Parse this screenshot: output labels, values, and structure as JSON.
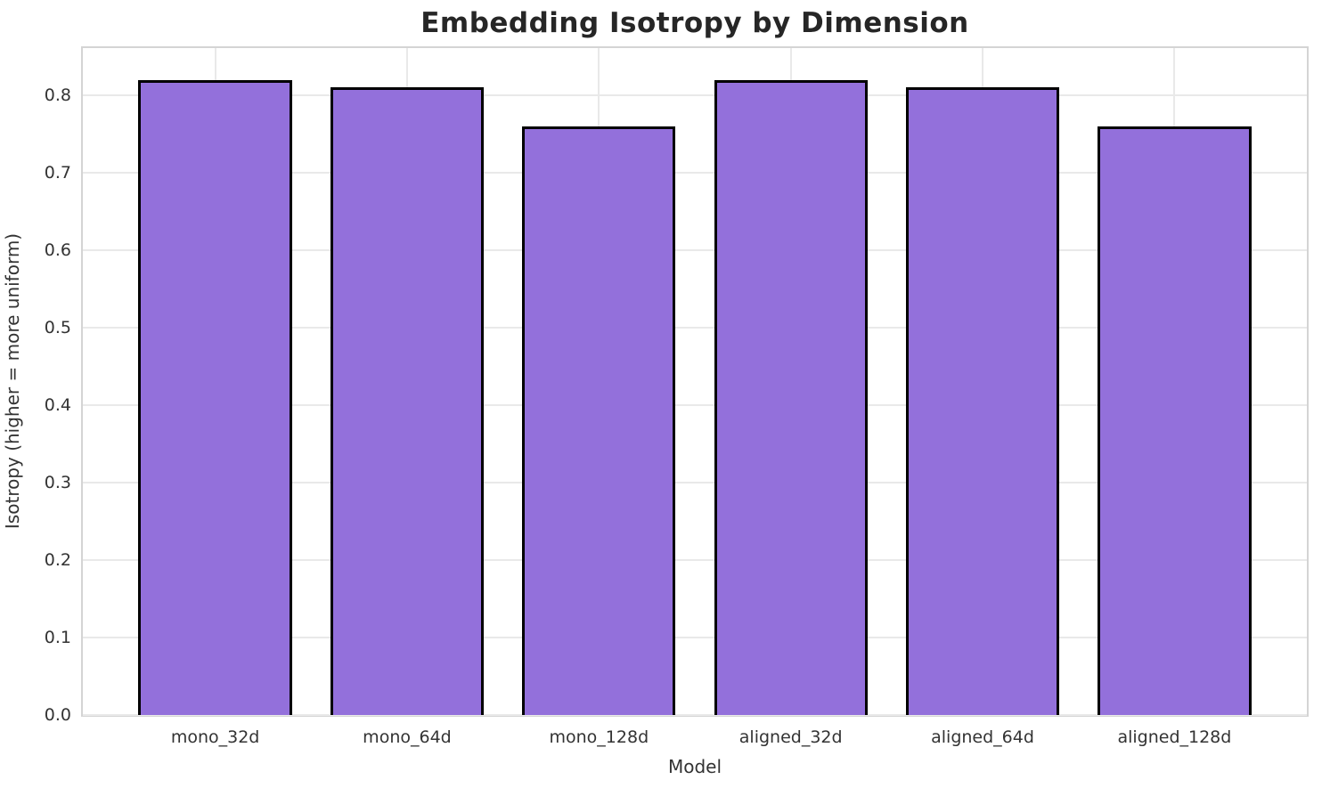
{
  "chart_data": {
    "type": "bar",
    "title": "Embedding Isotropy by Dimension",
    "xlabel": "Model",
    "ylabel": "Isotropy (higher = more uniform)",
    "categories": [
      "mono_32d",
      "mono_64d",
      "mono_128d",
      "aligned_32d",
      "aligned_64d",
      "aligned_128d"
    ],
    "values": [
      0.82,
      0.81,
      0.76,
      0.82,
      0.81,
      0.76
    ],
    "yticks": [
      0.0,
      0.1,
      0.2,
      0.3,
      0.4,
      0.5,
      0.6,
      0.7,
      0.8
    ],
    "ytick_labels": [
      "0.0",
      "0.1",
      "0.2",
      "0.3",
      "0.4",
      "0.5",
      "0.6",
      "0.7",
      "0.8"
    ],
    "ylim": [
      0,
      0.861
    ],
    "xlim": [
      -0.69,
      5.69
    ],
    "bar_width_fraction": 0.8,
    "grid": "both",
    "legend": "none",
    "colors": {
      "bar_fill": "#9370DB",
      "bar_edge": "#000000",
      "grid": "#e9e9e9",
      "spine": "#d4d4d4",
      "title_text": "#262626",
      "tick_text": "#333333",
      "background": "#ffffff"
    }
  }
}
